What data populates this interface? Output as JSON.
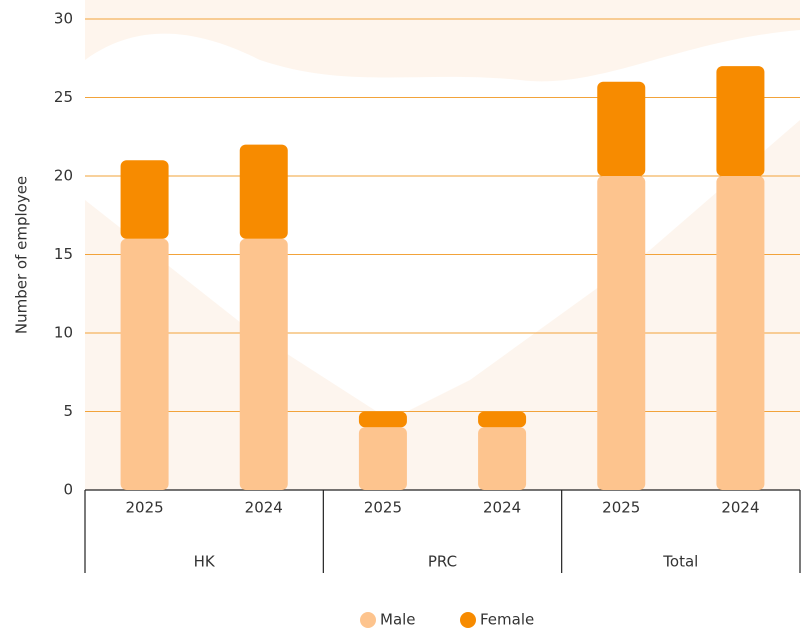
{
  "chart_data": {
    "type": "stacked-bar",
    "y_label": "Number of employee",
    "groups": [
      {
        "name": "HK",
        "categories": [
          "2025",
          "2024"
        ]
      },
      {
        "name": "PRC",
        "categories": [
          "2025",
          "2024"
        ]
      },
      {
        "name": "Total",
        "categories": [
          "2025",
          "2024"
        ]
      }
    ],
    "series": [
      {
        "name": "Male",
        "color": "#fdc48e",
        "values": [
          16,
          16,
          4,
          4,
          20,
          20
        ]
      },
      {
        "name": "Female",
        "color": "#f78b00",
        "values": [
          5,
          6,
          1,
          1,
          6,
          7
        ]
      }
    ],
    "ylim": [
      0,
      30
    ],
    "yticks": [
      0,
      5,
      10,
      15,
      20,
      25,
      30
    ],
    "grid": true,
    "legend": "bottom"
  }
}
